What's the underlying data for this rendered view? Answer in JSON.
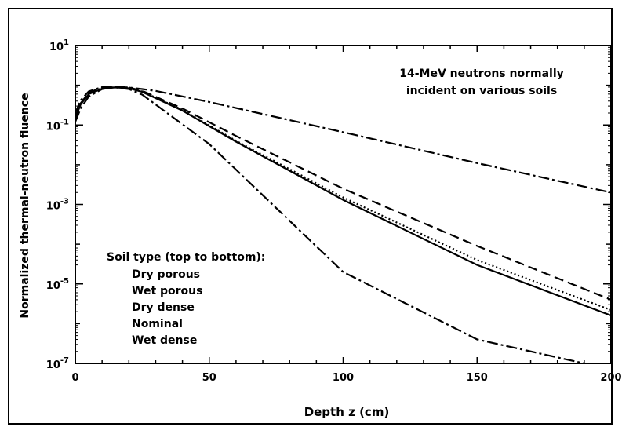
{
  "chart_data": {
    "type": "line",
    "xlabel": "Depth z (cm)",
    "ylabel": "Normalized thermal-neutron fluence",
    "xlim": [
      0,
      200
    ],
    "ylim": [
      1e-07,
      10
    ],
    "yscale": "log",
    "grid": false,
    "x_ticks": [
      "0",
      "50",
      "100",
      "150",
      "200"
    ],
    "y_ticks": [
      {
        "base": "10",
        "exp": "1"
      },
      {
        "base": "10",
        "exp": "-1"
      },
      {
        "base": "10",
        "exp": "-3"
      },
      {
        "base": "10",
        "exp": "-5"
      },
      {
        "base": "10",
        "exp": "-7"
      }
    ],
    "annotation": [
      "14-MeV neutrons normally",
      "incident on various soils"
    ],
    "legend_title": "Soil type (top to bottom):",
    "legend_items": [
      "Dry porous",
      "Wet porous",
      "Dry dense",
      "Nominal",
      "Wet dense"
    ],
    "series": [
      {
        "name": "Dry porous",
        "x": [
          0,
          2,
          5,
          10,
          15,
          20,
          25,
          30,
          50,
          100,
          150,
          200
        ],
        "y": [
          0.12,
          0.26,
          0.52,
          0.8,
          0.9,
          0.88,
          0.8,
          0.72,
          0.38,
          0.066,
          0.011,
          0.002
        ],
        "color": "#000000",
        "dash": "14,4,3,4"
      },
      {
        "name": "Wet porous",
        "x": [
          0,
          2,
          5,
          10,
          15,
          20,
          25,
          40,
          60,
          100,
          150,
          200
        ],
        "y": [
          0.15,
          0.35,
          0.65,
          0.88,
          0.92,
          0.88,
          0.72,
          0.26,
          0.053,
          0.0025,
          9e-05,
          4e-06
        ],
        "color": "#000000",
        "dash": "12,6"
      },
      {
        "name": "Dry dense",
        "x": [
          0,
          2,
          5,
          10,
          15,
          20,
          25,
          40,
          60,
          100,
          150,
          200
        ],
        "y": [
          0.15,
          0.35,
          0.62,
          0.85,
          0.9,
          0.85,
          0.7,
          0.24,
          0.04,
          0.0015,
          4e-05,
          2.2e-06
        ],
        "color": "#000000",
        "dash": "2,3"
      },
      {
        "name": "Nominal",
        "x": [
          0,
          2,
          5,
          10,
          15,
          20,
          25,
          40,
          60,
          100,
          150,
          200
        ],
        "y": [
          0.15,
          0.33,
          0.6,
          0.82,
          0.88,
          0.84,
          0.68,
          0.23,
          0.038,
          0.0013,
          3e-05,
          1.6e-06
        ],
        "color": "#000000",
        "dash": ""
      },
      {
        "name": "Wet dense",
        "x": [
          0,
          2,
          5,
          10,
          15,
          20,
          25,
          50,
          100,
          150,
          190
        ],
        "y": [
          0.2,
          0.42,
          0.7,
          0.9,
          0.88,
          0.8,
          0.58,
          0.033,
          2e-05,
          4e-07,
          1e-07
        ],
        "color": "#000000",
        "dash": "14,4,3,4"
      }
    ]
  }
}
